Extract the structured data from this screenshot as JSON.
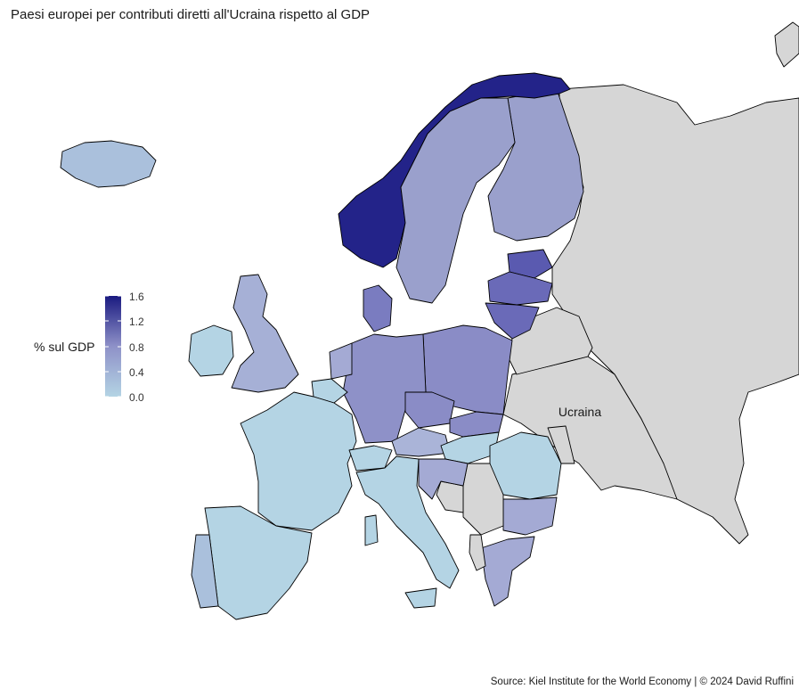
{
  "title": "Paesi europei per contributi diretti all'Ucraina rispetto al GDP",
  "source": "Source: Kiel Institute for the World Economy | © 2024 David Ruffini",
  "map_label": "Ucraina",
  "legend": {
    "title": "% sul GDP",
    "ticks": [
      "1.6",
      "1.2",
      "0.8",
      "0.4",
      "0.0"
    ],
    "min": 0,
    "max": 1.6,
    "color_low": "#b4d4e4",
    "color_high": "#1a1a80",
    "no_data_color": "#d6d6d6"
  }
}
